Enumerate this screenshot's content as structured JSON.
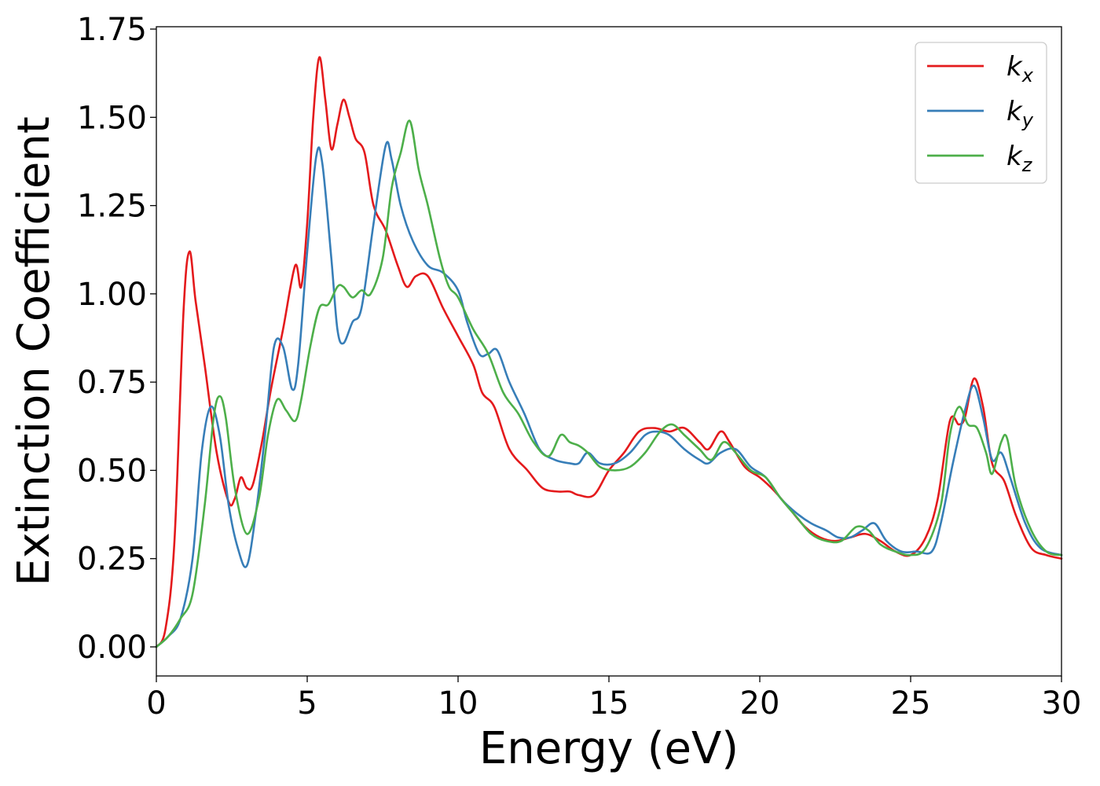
{
  "chart_data": {
    "type": "line",
    "title": "",
    "xlabel": "Energy (eV)",
    "ylabel": "Extinction Coefficient",
    "xlim": [
      0,
      30
    ],
    "ylim": [
      -0.08,
      1.76
    ],
    "xticks": [
      0,
      5,
      10,
      15,
      20,
      25,
      30
    ],
    "yticks": [
      0.0,
      0.25,
      0.5,
      0.75,
      1.0,
      1.25,
      1.5,
      1.75
    ],
    "ytick_labels": [
      "0.00",
      "0.25",
      "0.50",
      "0.75",
      "1.00",
      "1.25",
      "1.50",
      "1.75"
    ],
    "xtick_labels": [
      "0",
      "5",
      "10",
      "15",
      "20",
      "25",
      "30"
    ],
    "grid": false,
    "legend_position": "top-right",
    "series": [
      {
        "name": "k",
        "subscript": "x",
        "color": "#e41a1c",
        "points": [
          [
            0,
            0
          ],
          [
            0.3,
            0.05
          ],
          [
            0.6,
            0.3
          ],
          [
            0.9,
            0.95
          ],
          [
            1.1,
            1.12
          ],
          [
            1.3,
            0.98
          ],
          [
            1.6,
            0.8
          ],
          [
            2.0,
            0.55
          ],
          [
            2.4,
            0.41
          ],
          [
            2.6,
            0.42
          ],
          [
            2.8,
            0.48
          ],
          [
            3.0,
            0.45
          ],
          [
            3.2,
            0.46
          ],
          [
            3.5,
            0.58
          ],
          [
            3.8,
            0.73
          ],
          [
            4.2,
            0.9
          ],
          [
            4.6,
            1.08
          ],
          [
            4.8,
            1.02
          ],
          [
            5.0,
            1.2
          ],
          [
            5.2,
            1.5
          ],
          [
            5.4,
            1.67
          ],
          [
            5.6,
            1.55
          ],
          [
            5.8,
            1.41
          ],
          [
            6.0,
            1.48
          ],
          [
            6.2,
            1.55
          ],
          [
            6.4,
            1.5
          ],
          [
            6.6,
            1.44
          ],
          [
            6.9,
            1.4
          ],
          [
            7.2,
            1.25
          ],
          [
            7.6,
            1.18
          ],
          [
            8.0,
            1.08
          ],
          [
            8.3,
            1.02
          ],
          [
            8.6,
            1.05
          ],
          [
            9.0,
            1.05
          ],
          [
            9.5,
            0.96
          ],
          [
            10.0,
            0.88
          ],
          [
            10.5,
            0.8
          ],
          [
            10.8,
            0.72
          ],
          [
            11.2,
            0.68
          ],
          [
            11.7,
            0.56
          ],
          [
            12.3,
            0.5
          ],
          [
            12.8,
            0.45
          ],
          [
            13.3,
            0.44
          ],
          [
            13.7,
            0.44
          ],
          [
            14.0,
            0.43
          ],
          [
            14.5,
            0.43
          ],
          [
            15.0,
            0.5
          ],
          [
            15.5,
            0.55
          ],
          [
            16.0,
            0.61
          ],
          [
            16.5,
            0.62
          ],
          [
            17.0,
            0.61
          ],
          [
            17.5,
            0.62
          ],
          [
            18.0,
            0.58
          ],
          [
            18.3,
            0.56
          ],
          [
            18.7,
            0.61
          ],
          [
            19.0,
            0.58
          ],
          [
            19.5,
            0.51
          ],
          [
            20.0,
            0.48
          ],
          [
            20.5,
            0.44
          ],
          [
            21.0,
            0.39
          ],
          [
            21.5,
            0.34
          ],
          [
            22.0,
            0.31
          ],
          [
            22.5,
            0.3
          ],
          [
            23.0,
            0.31
          ],
          [
            23.5,
            0.32
          ],
          [
            24.0,
            0.3
          ],
          [
            24.5,
            0.27
          ],
          [
            25.0,
            0.26
          ],
          [
            25.5,
            0.31
          ],
          [
            25.9,
            0.42
          ],
          [
            26.3,
            0.64
          ],
          [
            26.6,
            0.63
          ],
          [
            26.8,
            0.65
          ],
          [
            27.1,
            0.76
          ],
          [
            27.4,
            0.68
          ],
          [
            27.7,
            0.52
          ],
          [
            28.1,
            0.47
          ],
          [
            28.5,
            0.37
          ],
          [
            29.0,
            0.28
          ],
          [
            29.5,
            0.26
          ],
          [
            30,
            0.25
          ]
        ]
      },
      {
        "name": "k",
        "subscript": "y",
        "color": "#377eb8",
        "points": [
          [
            0,
            0
          ],
          [
            0.4,
            0.03
          ],
          [
            0.8,
            0.08
          ],
          [
            1.2,
            0.25
          ],
          [
            1.5,
            0.55
          ],
          [
            1.8,
            0.68
          ],
          [
            2.1,
            0.6
          ],
          [
            2.4,
            0.4
          ],
          [
            2.7,
            0.28
          ],
          [
            3.0,
            0.23
          ],
          [
            3.3,
            0.38
          ],
          [
            3.6,
            0.6
          ],
          [
            3.9,
            0.85
          ],
          [
            4.2,
            0.85
          ],
          [
            4.5,
            0.73
          ],
          [
            4.7,
            0.8
          ],
          [
            5.0,
            1.12
          ],
          [
            5.3,
            1.39
          ],
          [
            5.5,
            1.37
          ],
          [
            5.8,
            1.1
          ],
          [
            6.0,
            0.9
          ],
          [
            6.2,
            0.86
          ],
          [
            6.5,
            0.92
          ],
          [
            6.8,
            0.96
          ],
          [
            7.2,
            1.2
          ],
          [
            7.6,
            1.42
          ],
          [
            7.8,
            1.38
          ],
          [
            8.1,
            1.25
          ],
          [
            8.5,
            1.15
          ],
          [
            9.0,
            1.08
          ],
          [
            9.5,
            1.06
          ],
          [
            10.0,
            1.01
          ],
          [
            10.3,
            0.92
          ],
          [
            10.7,
            0.83
          ],
          [
            11.0,
            0.83
          ],
          [
            11.3,
            0.84
          ],
          [
            11.7,
            0.75
          ],
          [
            12.2,
            0.66
          ],
          [
            12.7,
            0.56
          ],
          [
            13.2,
            0.53
          ],
          [
            13.7,
            0.52
          ],
          [
            14.0,
            0.52
          ],
          [
            14.3,
            0.55
          ],
          [
            14.7,
            0.52
          ],
          [
            15.2,
            0.52
          ],
          [
            15.7,
            0.55
          ],
          [
            16.2,
            0.6
          ],
          [
            16.6,
            0.61
          ],
          [
            17.0,
            0.6
          ],
          [
            17.5,
            0.56
          ],
          [
            18.0,
            0.53
          ],
          [
            18.3,
            0.52
          ],
          [
            18.7,
            0.55
          ],
          [
            19.2,
            0.56
          ],
          [
            19.7,
            0.51
          ],
          [
            20.2,
            0.48
          ],
          [
            20.7,
            0.42
          ],
          [
            21.2,
            0.38
          ],
          [
            21.7,
            0.35
          ],
          [
            22.2,
            0.33
          ],
          [
            22.6,
            0.31
          ],
          [
            23.0,
            0.31
          ],
          [
            23.4,
            0.33
          ],
          [
            23.8,
            0.35
          ],
          [
            24.2,
            0.3
          ],
          [
            24.7,
            0.27
          ],
          [
            25.2,
            0.27
          ],
          [
            25.7,
            0.27
          ],
          [
            26.0,
            0.35
          ],
          [
            26.4,
            0.52
          ],
          [
            26.8,
            0.67
          ],
          [
            27.1,
            0.74
          ],
          [
            27.4,
            0.65
          ],
          [
            27.7,
            0.53
          ],
          [
            28.0,
            0.55
          ],
          [
            28.3,
            0.48
          ],
          [
            28.8,
            0.35
          ],
          [
            29.3,
            0.28
          ],
          [
            30,
            0.26
          ]
        ]
      },
      {
        "name": "k",
        "subscript": "z",
        "color": "#4daf4a",
        "points": [
          [
            0,
            0
          ],
          [
            0.4,
            0.03
          ],
          [
            0.8,
            0.08
          ],
          [
            1.2,
            0.15
          ],
          [
            1.6,
            0.4
          ],
          [
            1.9,
            0.65
          ],
          [
            2.1,
            0.71
          ],
          [
            2.3,
            0.65
          ],
          [
            2.6,
            0.45
          ],
          [
            3.0,
            0.32
          ],
          [
            3.4,
            0.42
          ],
          [
            3.7,
            0.6
          ],
          [
            4.0,
            0.7
          ],
          [
            4.3,
            0.67
          ],
          [
            4.6,
            0.64
          ],
          [
            4.8,
            0.7
          ],
          [
            5.1,
            0.85
          ],
          [
            5.4,
            0.96
          ],
          [
            5.7,
            0.97
          ],
          [
            6.0,
            1.02
          ],
          [
            6.2,
            1.02
          ],
          [
            6.5,
            0.99
          ],
          [
            6.8,
            1.01
          ],
          [
            7.1,
            1.0
          ],
          [
            7.5,
            1.1
          ],
          [
            7.8,
            1.3
          ],
          [
            8.1,
            1.4
          ],
          [
            8.4,
            1.49
          ],
          [
            8.7,
            1.35
          ],
          [
            9.0,
            1.25
          ],
          [
            9.4,
            1.1
          ],
          [
            9.7,
            1.02
          ],
          [
            10.0,
            0.99
          ],
          [
            10.5,
            0.9
          ],
          [
            11.0,
            0.83
          ],
          [
            11.5,
            0.72
          ],
          [
            12.0,
            0.66
          ],
          [
            12.5,
            0.58
          ],
          [
            13.0,
            0.54
          ],
          [
            13.4,
            0.6
          ],
          [
            13.7,
            0.58
          ],
          [
            14.0,
            0.57
          ],
          [
            14.3,
            0.55
          ],
          [
            14.7,
            0.51
          ],
          [
            15.2,
            0.5
          ],
          [
            15.7,
            0.51
          ],
          [
            16.2,
            0.55
          ],
          [
            16.7,
            0.61
          ],
          [
            17.1,
            0.63
          ],
          [
            17.5,
            0.6
          ],
          [
            18.0,
            0.56
          ],
          [
            18.4,
            0.53
          ],
          [
            18.8,
            0.58
          ],
          [
            19.2,
            0.55
          ],
          [
            19.7,
            0.5
          ],
          [
            20.2,
            0.48
          ],
          [
            20.7,
            0.42
          ],
          [
            21.2,
            0.37
          ],
          [
            21.7,
            0.32
          ],
          [
            22.2,
            0.3
          ],
          [
            22.7,
            0.3
          ],
          [
            23.2,
            0.34
          ],
          [
            23.6,
            0.33
          ],
          [
            24.0,
            0.29
          ],
          [
            24.5,
            0.27
          ],
          [
            25.0,
            0.26
          ],
          [
            25.5,
            0.28
          ],
          [
            26.0,
            0.4
          ],
          [
            26.3,
            0.6
          ],
          [
            26.6,
            0.68
          ],
          [
            26.9,
            0.63
          ],
          [
            27.2,
            0.62
          ],
          [
            27.5,
            0.55
          ],
          [
            27.7,
            0.49
          ],
          [
            28.0,
            0.58
          ],
          [
            28.2,
            0.59
          ],
          [
            28.5,
            0.45
          ],
          [
            29.0,
            0.33
          ],
          [
            29.5,
            0.27
          ],
          [
            30,
            0.26
          ]
        ]
      }
    ]
  }
}
